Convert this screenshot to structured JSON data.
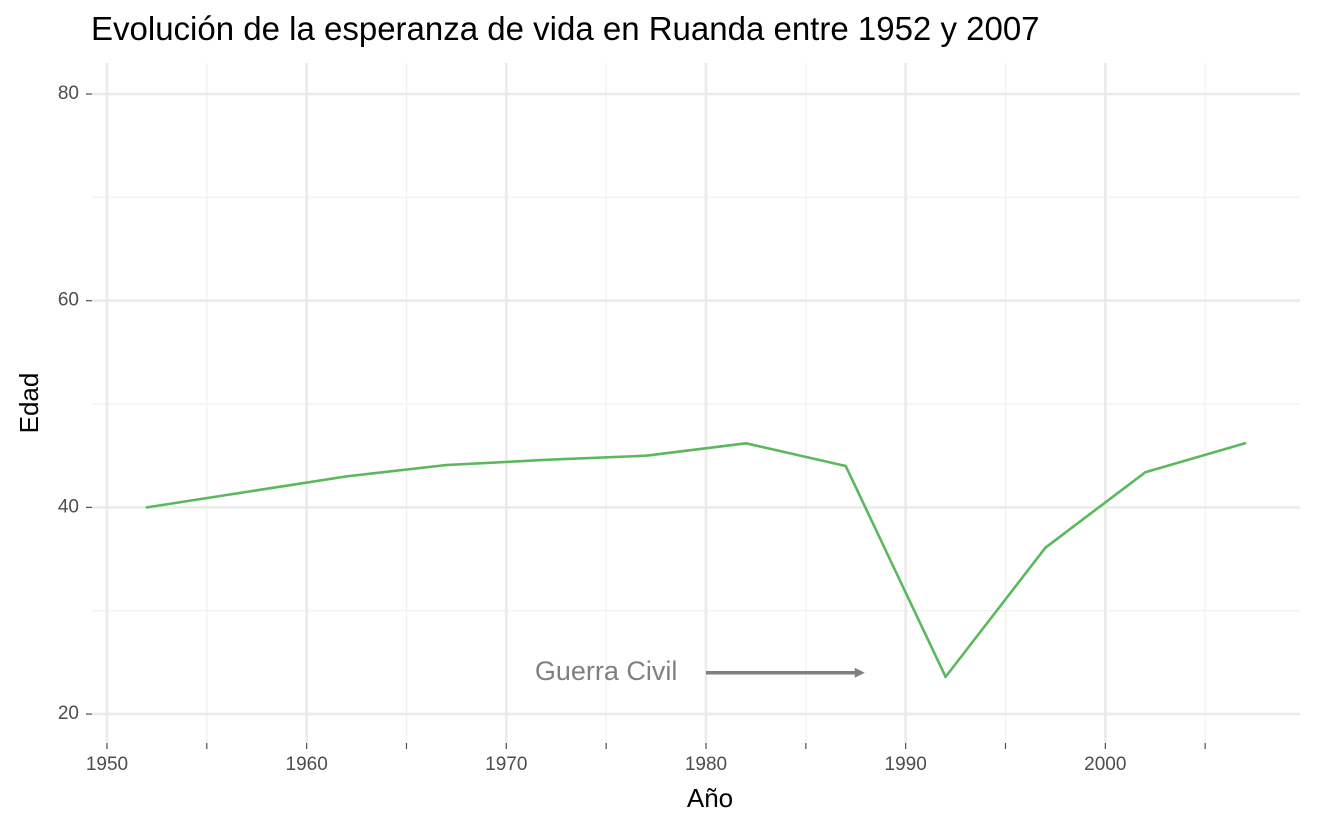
{
  "chart_data": {
    "type": "line",
    "title": "Evolución de la esperanza de vida en Ruanda entre 1952 y 2007",
    "xlabel": "Año",
    "ylabel": "Edad",
    "x": [
      1952,
      1957,
      1962,
      1967,
      1972,
      1977,
      1982,
      1987,
      1992,
      1997,
      2002,
      2007
    ],
    "series": [
      {
        "values": [
          40.0,
          41.5,
          43.0,
          44.1,
          44.6,
          45.0,
          46.2,
          44.0,
          23.6,
          36.1,
          43.4,
          46.2
        ],
        "color": "#5cb85c"
      }
    ],
    "xlim": [
      1949.25,
      2009.75
    ],
    "ylim": [
      17.2,
      83.0
    ],
    "x_ticks": [
      1950,
      1960,
      1970,
      1980,
      1990,
      2000
    ],
    "x_minor_ticks": [
      1955,
      1965,
      1975,
      1985,
      1995,
      2005
    ],
    "y_ticks": [
      20,
      40,
      60,
      80
    ],
    "y_minor_ticks": [
      30,
      50,
      70
    ],
    "grid": true,
    "legend": "none",
    "annotation": {
      "text": "Guerra Civil",
      "text_x": 1975,
      "text_y": 24,
      "arrow_from_x": 1980,
      "arrow_to_x": 1988,
      "arrow_y": 24,
      "color": "#808080"
    }
  },
  "colors": {
    "grid_major": "#ebebeb",
    "grid_minor": "#f2f2f2",
    "tick": "#4d4d4d"
  }
}
